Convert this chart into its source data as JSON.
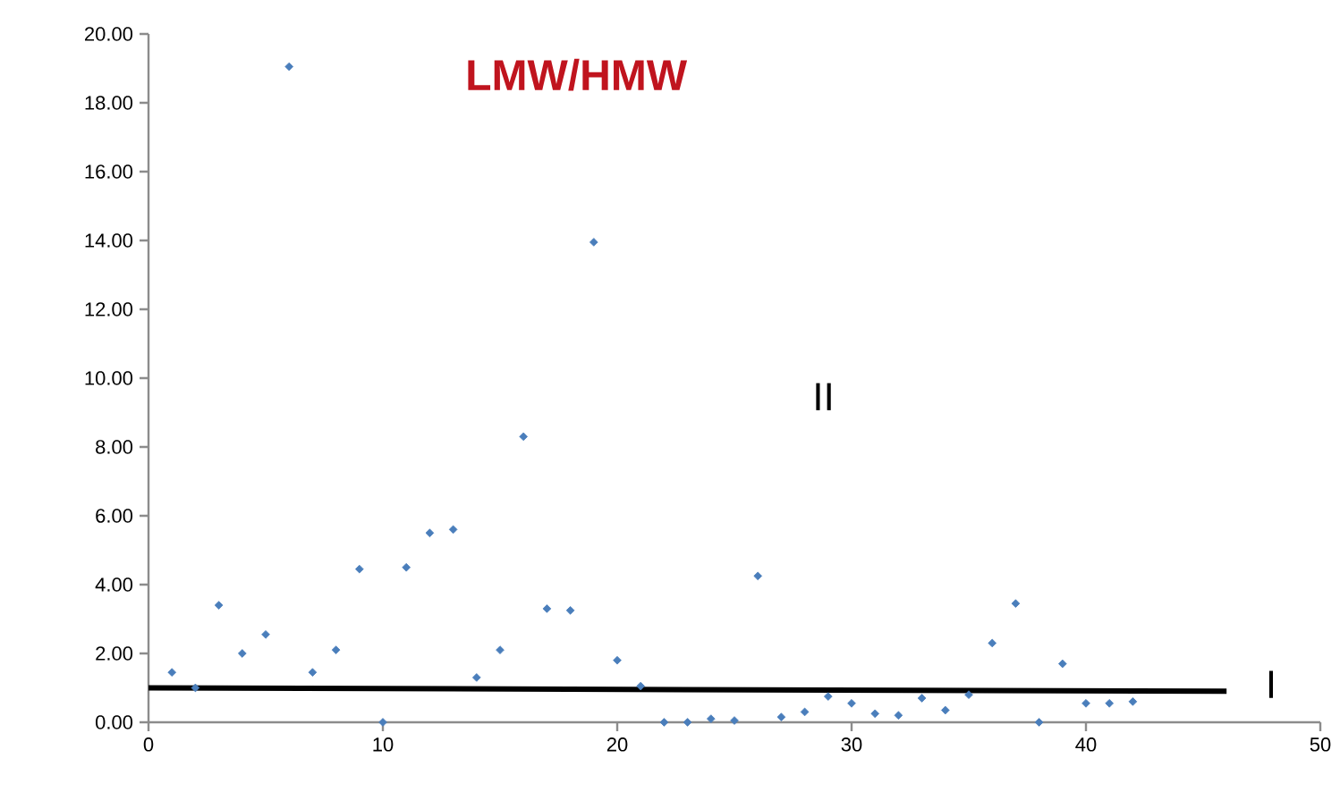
{
  "chart_data": {
    "type": "scatter",
    "title": "LMW/HMW",
    "xlim": [
      0,
      50
    ],
    "ylim": [
      0,
      20
    ],
    "xticks": [
      0,
      10,
      20,
      30,
      40,
      50
    ],
    "yticks": [
      {
        "value": 0,
        "label": "0.00"
      },
      {
        "value": 2,
        "label": "2.00"
      },
      {
        "value": 4,
        "label": "4.00"
      },
      {
        "value": 6,
        "label": "6.00"
      },
      {
        "value": 8,
        "label": "8.00"
      },
      {
        "value": 10,
        "label": "10.00"
      },
      {
        "value": 12,
        "label": "12.00"
      },
      {
        "value": 14,
        "label": "14.00"
      },
      {
        "value": 16,
        "label": "16.00"
      },
      {
        "value": 18,
        "label": "18.00"
      },
      {
        "value": 20,
        "label": "20.00"
      }
    ],
    "grid": false,
    "marker": "diamond",
    "series": [
      {
        "color": "#4a7ebb",
        "x": [
          1,
          2,
          3,
          4,
          5,
          6,
          7,
          8,
          9,
          10,
          11,
          12,
          13,
          14,
          15,
          16,
          17,
          18,
          19,
          20,
          21,
          22,
          23,
          24,
          25,
          26,
          27,
          28,
          29,
          30,
          31,
          32,
          33,
          34,
          35,
          36,
          37,
          38,
          39,
          40,
          41,
          42
        ],
        "values": [
          1.45,
          1.0,
          3.4,
          2.0,
          2.55,
          19.05,
          1.45,
          2.1,
          4.45,
          0.0,
          4.5,
          5.5,
          5.6,
          1.3,
          2.1,
          8.3,
          3.3,
          3.25,
          13.95,
          1.8,
          1.05,
          0.0,
          0.0,
          0.1,
          0.05,
          4.25,
          0.15,
          0.3,
          0.75,
          0.55,
          0.25,
          0.2,
          0.7,
          0.35,
          0.8,
          2.3,
          3.45,
          0.0,
          1.7,
          0.55,
          0.55,
          0.6
        ]
      },
      {
        "type": "line",
        "color": "#000000",
        "marker": "none",
        "x": [
          0,
          46
        ],
        "values": [
          1.0,
          0.9
        ]
      }
    ],
    "annotations": [
      "II",
      "I"
    ]
  }
}
